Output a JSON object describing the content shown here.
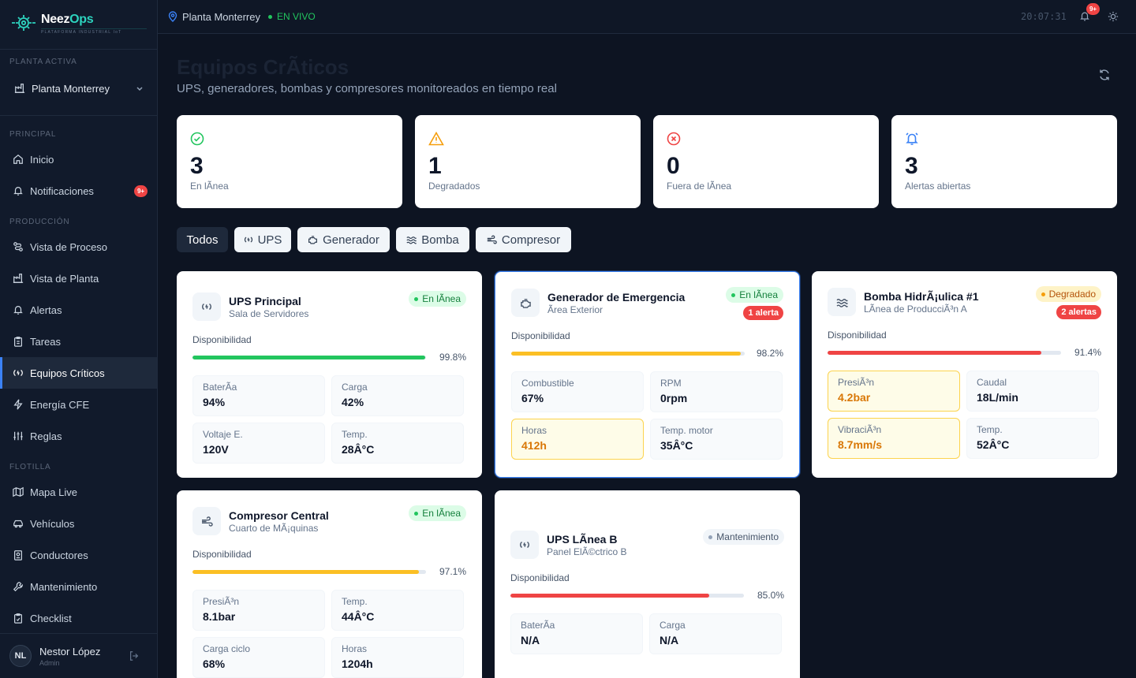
{
  "brand": {
    "name_part1": "Neez",
    "name_part2": "Ops",
    "subtitle": "PLATAFORMA INDUSTRIAL IoT"
  },
  "sidebar": {
    "plant_section": "PLANTA ACTIVA",
    "plant_name": "Planta Monterrey",
    "sections": {
      "principal": "PRINCIPAL",
      "produccion": "PRODUCCIÓN",
      "flotilla": "FLOTILLA"
    },
    "items": {
      "inicio": "Inicio",
      "notificaciones": "Notificaciones",
      "notificaciones_badge": "9+",
      "vista_proceso": "Vista de Proceso",
      "vista_planta": "Vista de Planta",
      "alertas": "Alertas",
      "tareas": "Tareas",
      "equipos": "Equipos Críticos",
      "energia": "Energía CFE",
      "reglas": "Reglas",
      "mapa": "Mapa Live",
      "vehiculos": "Vehículos",
      "conductores": "Conductores",
      "mantenimiento": "Mantenimiento",
      "checklist": "Checklist"
    },
    "user": {
      "initials": "NL",
      "name": "Nestor López",
      "role": "Admin"
    }
  },
  "topbar": {
    "location": "Planta Monterrey",
    "live": "EN VIVO",
    "clock": "20:07:31",
    "bell_badge": "9+"
  },
  "page": {
    "title": "Equipos CrÃ­ticos",
    "subtitle": "UPS, generadores, bombas y compresores monitoreados en tiempo real"
  },
  "stats": [
    {
      "value": "3",
      "label": "En lÃ­nea",
      "color": "#22c55e"
    },
    {
      "value": "1",
      "label": "Degradados",
      "color": "#f59e0b"
    },
    {
      "value": "0",
      "label": "Fuera de lÃ­nea",
      "color": "#ef4444"
    },
    {
      "value": "3",
      "label": "Alertas abiertas",
      "color": "#3b82f6"
    }
  ],
  "filters": {
    "all": "Todos",
    "ups": "UPS",
    "generador": "Generador",
    "bomba": "Bomba",
    "compresor": "Compresor"
  },
  "availability_label": "Disponibilidad",
  "cards": [
    {
      "name": "UPS Principal",
      "location": "Sala de Servidores",
      "status": "En lÃ­nea",
      "availability": 99.8,
      "availability_text": "99.8%",
      "bar_color": "#22c55e",
      "metrics": [
        {
          "label": "BaterÃ­a",
          "value": "94%"
        },
        {
          "label": "Carga",
          "value": "42%"
        },
        {
          "label": "Voltaje E.",
          "value": "120V"
        },
        {
          "label": "Temp.",
          "value": "28Â°C"
        }
      ]
    },
    {
      "name": "Generador de Emergencia",
      "location": "Ãrea Exterior",
      "status": "En lÃ­nea",
      "alert": "1 alerta",
      "availability": 98.2,
      "availability_text": "98.2%",
      "bar_color": "#fbbf24",
      "metrics": [
        {
          "label": "Combustible",
          "value": "67%"
        },
        {
          "label": "RPM",
          "value": "0rpm"
        },
        {
          "label": "Horas",
          "value": "412h"
        },
        {
          "label": "Temp. motor",
          "value": "35Â°C"
        }
      ]
    },
    {
      "name": "Bomba HidrÃ¡ulica #1",
      "location": "LÃ­nea de ProducciÃ³n A",
      "status": "Degradado",
      "alert": "2 alertas",
      "availability": 91.4,
      "availability_text": "91.4%",
      "bar_color": "#ef4444",
      "metrics": [
        {
          "label": "PresiÃ³n",
          "value": "4.2bar"
        },
        {
          "label": "Caudal",
          "value": "18L/min"
        },
        {
          "label": "VibraciÃ³n",
          "value": "8.7mm/s"
        },
        {
          "label": "Temp.",
          "value": "52Â°C"
        }
      ]
    },
    {
      "name": "Compresor Central",
      "location": "Cuarto de MÃ¡quinas",
      "status": "En lÃ­nea",
      "availability": 97.1,
      "availability_text": "97.1%",
      "bar_color": "#fbbf24",
      "metrics": [
        {
          "label": "PresiÃ³n",
          "value": "8.1bar"
        },
        {
          "label": "Temp.",
          "value": "44Â°C"
        },
        {
          "label": "Carga ciclo",
          "value": "68%"
        },
        {
          "label": "Horas",
          "value": "1204h"
        }
      ]
    },
    {
      "name": "UPS LÃ­nea B",
      "location": "Panel ElÃ©ctrico B",
      "status": "Mantenimiento",
      "availability": 85.0,
      "availability_text": "85.0%",
      "bar_color": "#ef4444",
      "metrics": [
        {
          "label": "BaterÃ­a",
          "value": "N/A"
        },
        {
          "label": "Carga",
          "value": "N/A"
        }
      ]
    }
  ]
}
